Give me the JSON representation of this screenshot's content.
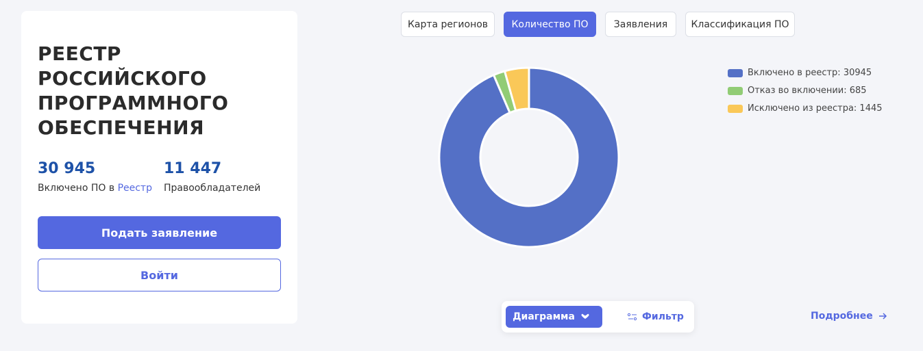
{
  "sidebar": {
    "title_lines": [
      "РЕЕСТР",
      "РОССИЙСКОГО",
      "ПРОГРАММНОГО",
      "ОБЕСПЕЧЕНИЯ"
    ],
    "stats": [
      {
        "value": "30 945",
        "label": "Включено ПО в",
        "link": "Реестр"
      },
      {
        "value": "11 447",
        "label": "Правообладателей"
      }
    ],
    "primary_button": "Подать заявление",
    "secondary_button": "Войти"
  },
  "tabs": [
    "Карта регионов",
    "Количество ПО",
    "Заявления",
    "Классификация ПО"
  ],
  "chart_data": {
    "type": "donut",
    "categories": [
      "Включено в реестр: 30945",
      "Отказ во включении: 685",
      "Исключено из реестра: 1445"
    ],
    "values": [
      30945,
      685,
      1445
    ],
    "colors": [
      "#5470c6",
      "#91cc75",
      "#fac858"
    ]
  },
  "toolbar": {
    "view_button": "Диаграмма",
    "filter_button": "Фильтр"
  },
  "more_link": "Подробнее"
}
